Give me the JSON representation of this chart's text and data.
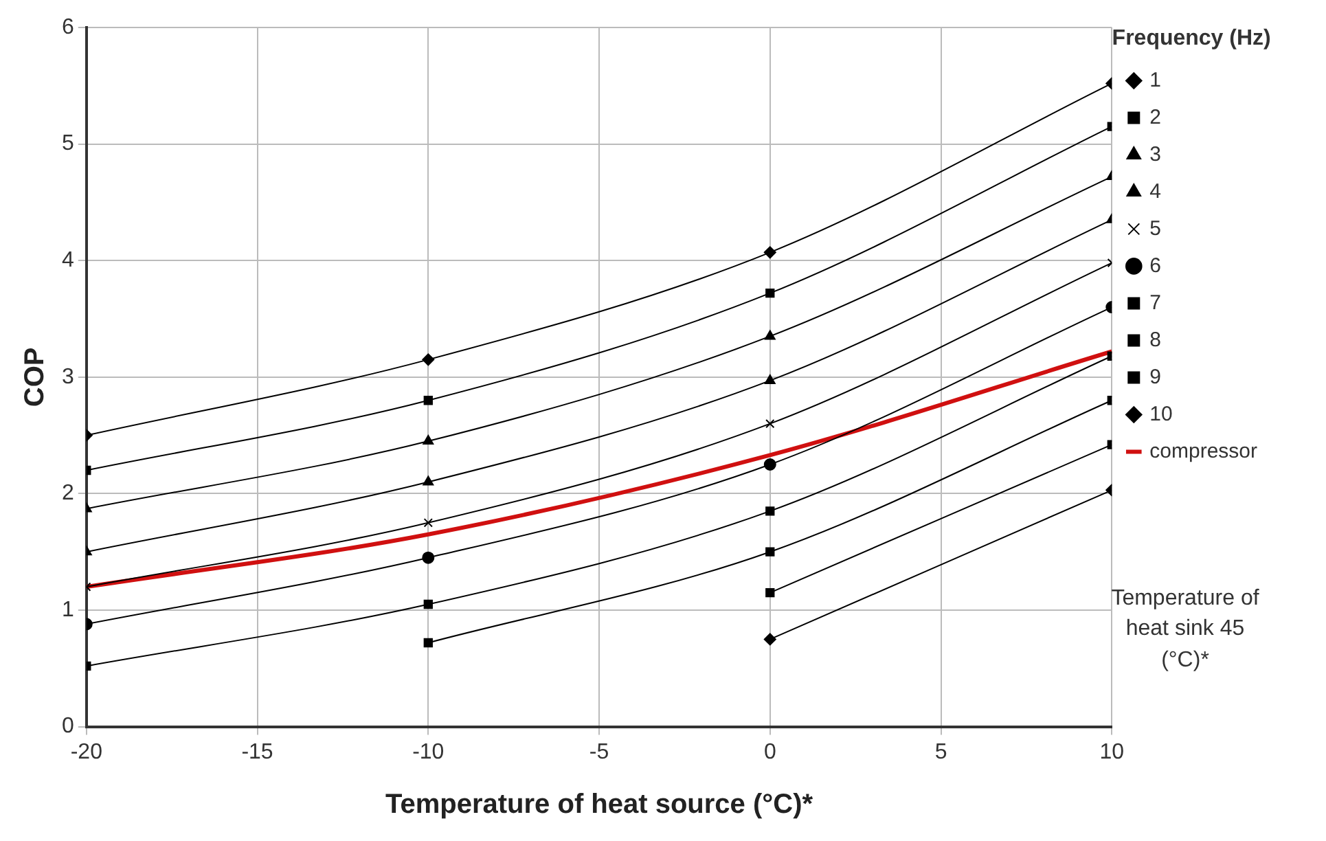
{
  "chart_data": {
    "type": "line",
    "xlabel": "Temperature of heat source (°C)*",
    "ylabel": "COP",
    "legend_title": "Frequency (Hz)",
    "annotations": [
      "Temperature of heat sink 45 (°C)*"
    ],
    "x": [
      -20,
      -10,
      0,
      10
    ],
    "xlim": [
      -20,
      10
    ],
    "xticks": [
      -20,
      -15,
      -10,
      -5,
      0,
      5,
      10
    ],
    "ylim": [
      0,
      6
    ],
    "yticks": [
      0,
      1,
      2,
      3,
      4,
      5,
      6
    ],
    "grid": true,
    "legend": "right",
    "line_style": "solid",
    "series": [
      {
        "name": "1",
        "color": "#000000",
        "marker": "diamond",
        "values": [
          2.5,
          3.15,
          4.07,
          5.52
        ]
      },
      {
        "name": "2",
        "color": "#000000",
        "marker": "square",
        "values": [
          2.2,
          2.8,
          3.72,
          5.15
        ]
      },
      {
        "name": "3",
        "color": "#000000",
        "marker": "triangle",
        "values": [
          1.87,
          2.45,
          3.35,
          4.72
        ]
      },
      {
        "name": "4",
        "color": "#000000",
        "marker": "triangle",
        "values": [
          1.5,
          2.1,
          2.97,
          4.35
        ]
      },
      {
        "name": "5",
        "color": "#000000",
        "marker": "cross",
        "values": [
          1.2,
          1.75,
          2.6,
          3.98
        ]
      },
      {
        "name": "6",
        "color": "#000000",
        "marker": "circle",
        "values": [
          0.88,
          1.45,
          2.25,
          3.6
        ]
      },
      {
        "name": "7",
        "color": "#000000",
        "marker": "square",
        "values": [
          0.52,
          1.05,
          1.85,
          3.18
        ]
      },
      {
        "name": "8",
        "color": "#000000",
        "marker": "square",
        "values": [
          null,
          0.72,
          1.5,
          2.8
        ]
      },
      {
        "name": "9",
        "color": "#000000",
        "marker": "square",
        "values": [
          null,
          null,
          1.15,
          2.42
        ]
      },
      {
        "name": "10",
        "color": "#000000",
        "marker": "diamond",
        "values": [
          null,
          null,
          0.75,
          2.03
        ]
      },
      {
        "name": "compressor",
        "color": "#d01010",
        "marker": "none",
        "values": [
          1.2,
          1.65,
          2.33,
          3.22
        ]
      }
    ]
  }
}
